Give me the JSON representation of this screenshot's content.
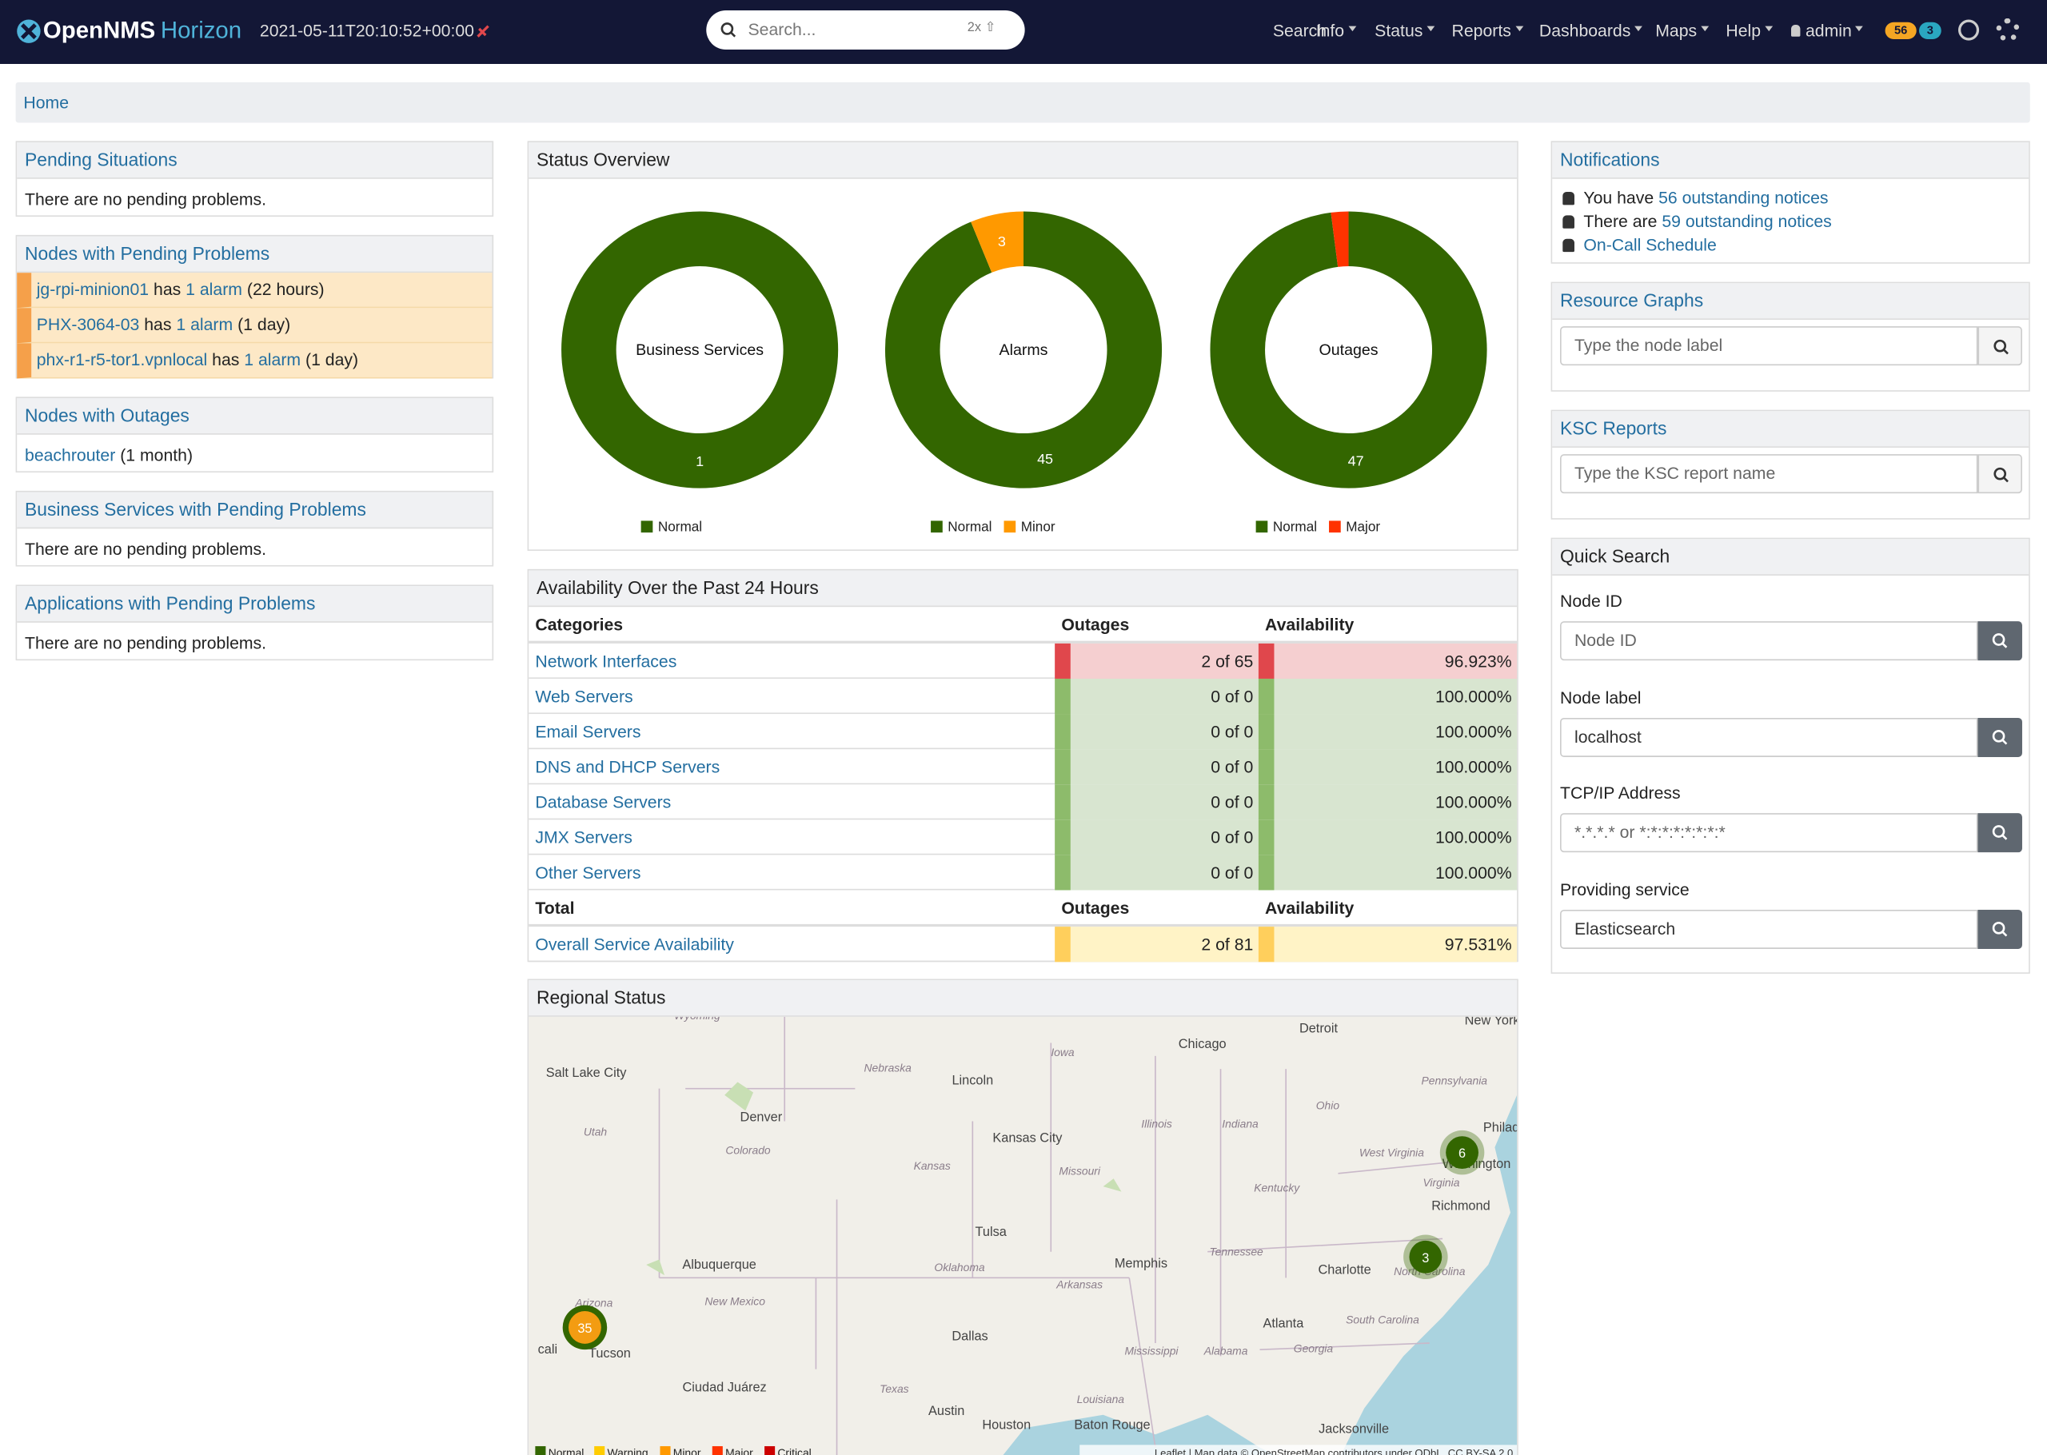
{
  "header": {
    "brand": "OpenNMS",
    "product": "Horizon",
    "timestamp": "2021-05-11T20:10:52+00:00",
    "search_placeholder": "Search...",
    "search_shortcut": "2x ⇧",
    "nav": [
      "Search",
      "Info",
      "Status",
      "Reports",
      "Dashboards",
      "Maps",
      "Help",
      "admin"
    ],
    "badges": [
      56,
      3
    ]
  },
  "breadcrumb": "Home",
  "pending_situations": {
    "title": "Pending Situations",
    "text": "There are no pending problems."
  },
  "nodes_pending": {
    "title": "Nodes with Pending Problems",
    "rows": [
      {
        "node": "jg-rpi-minion01",
        "has": "has",
        "alarm": "1 alarm",
        "age": "(22 hours)"
      },
      {
        "node": "PHX-3064-03",
        "has": "has",
        "alarm": "1 alarm",
        "age": "(1 day)"
      },
      {
        "node": "phx-r1-r5-tor1.vpnlocal",
        "has": "has",
        "alarm": "1 alarm",
        "age": "(1 day)"
      }
    ]
  },
  "nodes_outages": {
    "title": "Nodes with Outages",
    "rows": [
      {
        "node": "beachrouter",
        "age": "(1 month)"
      }
    ]
  },
  "business_services": {
    "title": "Business Services with Pending Problems",
    "text": "There are no pending problems."
  },
  "applications": {
    "title": "Applications with Pending Problems",
    "text": "There are no pending problems."
  },
  "status_overview": {
    "title": "Status Overview",
    "charts": [
      {
        "label": "Business Services",
        "series": [
          {
            "name": "Normal",
            "color": "#336600",
            "value": 1
          }
        ]
      },
      {
        "label": "Alarms",
        "series": [
          {
            "name": "Normal",
            "color": "#336600",
            "value": 45
          },
          {
            "name": "Minor",
            "color": "#ff9900",
            "value": 3
          }
        ]
      },
      {
        "label": "Outages",
        "series": [
          {
            "name": "Normal",
            "color": "#336600",
            "value": 47
          },
          {
            "name": "Major",
            "color": "#ff3300",
            "value": 1
          }
        ]
      }
    ]
  },
  "availability": {
    "title": "Availability Over the Past 24 Hours",
    "headers": [
      "Categories",
      "Outages",
      "Availability"
    ],
    "rows": [
      {
        "category": "Network Interfaces",
        "outages": "2 of 65",
        "availability": "96.923%",
        "color": "#e0474c",
        "bg": "#f5cfd0"
      },
      {
        "category": "Web Servers",
        "outages": "0 of 0",
        "availability": "100.000%",
        "color": "#8dbb6b",
        "bg": "#d8e5d0"
      },
      {
        "category": "Email Servers",
        "outages": "0 of 0",
        "availability": "100.000%",
        "color": "#8dbb6b",
        "bg": "#d8e5d0"
      },
      {
        "category": "DNS and DHCP Servers",
        "outages": "0 of 0",
        "availability": "100.000%",
        "color": "#8dbb6b",
        "bg": "#d8e5d0"
      },
      {
        "category": "Database Servers",
        "outages": "0 of 0",
        "availability": "100.000%",
        "color": "#8dbb6b",
        "bg": "#d8e5d0"
      },
      {
        "category": "JMX Servers",
        "outages": "0 of 0",
        "availability": "100.000%",
        "color": "#8dbb6b",
        "bg": "#d8e5d0"
      },
      {
        "category": "Other Servers",
        "outages": "0 of 0",
        "availability": "100.000%",
        "color": "#8dbb6b",
        "bg": "#d8e5d0"
      }
    ],
    "total_headers": [
      "Total",
      "Outages",
      "Availability"
    ],
    "total": {
      "category": "Overall Service Availability",
      "outages": "2 of 81",
      "availability": "97.531%",
      "color": "#ffcf5c",
      "bg": "#fff3c6"
    }
  },
  "regional": {
    "title": "Regional Status",
    "cities": [
      "Salt Lake City",
      "Chicago",
      "Detroit",
      "New York",
      "Lincoln",
      "Denver",
      "Kansas City",
      "Philad",
      "Richmond",
      "Tulsa",
      "Albuquerque",
      "Memphis",
      "Charlotte",
      "Atlanta",
      "Dallas",
      "Tucson",
      "cali",
      "Ciudad Juárez",
      "Austin",
      "Houston",
      "Baton Rouge",
      "Jacksonville",
      "Washington"
    ],
    "states": [
      "Wyoming",
      "Nebraska",
      "Iowa",
      "Pennsylvania",
      "Ohio",
      "Utah",
      "Colorado",
      "Illinois",
      "Indiana",
      "Kansas",
      "Missouri",
      "West Virginia",
      "Kentucky",
      "Virginia",
      "Tennessee",
      "Oklahoma",
      "North Carolina",
      "Arkansas",
      "New Mexico",
      "Arizona",
      "South Carolina",
      "Mississippi",
      "Alabama",
      "Georgia",
      "Texas",
      "Louisiana"
    ],
    "clusters": [
      {
        "count": 6,
        "color": "#336600"
      },
      {
        "count": 3,
        "color": "#336600"
      },
      {
        "count": 35,
        "color": "#f39c12"
      }
    ],
    "legend": [
      {
        "name": "Normal",
        "color": "#336600"
      },
      {
        "name": "Warning",
        "color": "#ffcc00"
      },
      {
        "name": "Minor",
        "color": "#ff9900"
      },
      {
        "name": "Major",
        "color": "#ff3300"
      },
      {
        "name": "Critical",
        "color": "#cc0000"
      }
    ],
    "attribution": "Leaflet | Map data © OpenStreetMap contributors under ODbL, CC BY-SA 2.0"
  },
  "notifications": {
    "title": "Notifications",
    "lines": [
      {
        "pre": "You have",
        "link": "56 outstanding notices"
      },
      {
        "pre": "There are",
        "link": "59 outstanding notices"
      },
      {
        "link": "On-Call Schedule"
      }
    ]
  },
  "resource_graphs": {
    "title": "Resource Graphs",
    "placeholder": "Type the node label"
  },
  "ksc": {
    "title": "KSC Reports",
    "placeholder": "Type the KSC report name"
  },
  "quick_search": {
    "title": "Quick Search",
    "fields": [
      {
        "label": "Node ID",
        "placeholder": "Node ID"
      },
      {
        "label": "Node label",
        "value": "localhost"
      },
      {
        "label": "TCP/IP Address",
        "placeholder": "*.*.*.* or *:*:*:*:*:*:*:*"
      },
      {
        "label": "Providing service",
        "value": "Elasticsearch"
      }
    ]
  }
}
